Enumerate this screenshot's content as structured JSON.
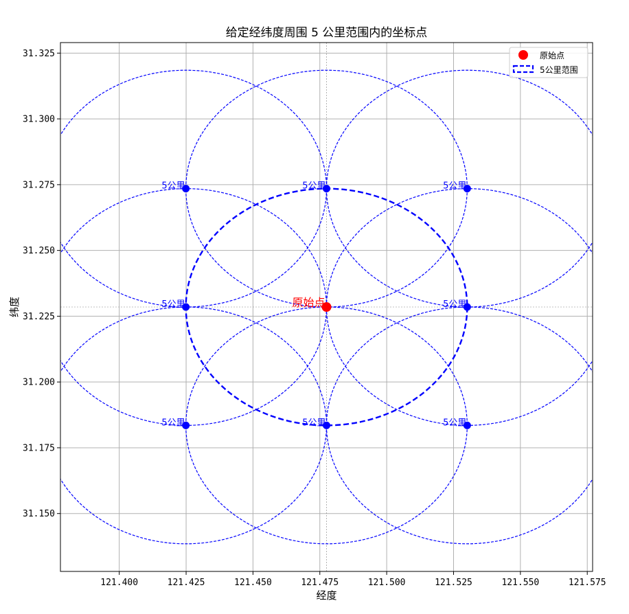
{
  "chart_data": {
    "type": "scatter",
    "title": "给定经纬度周围 5 公里范围内的坐标点",
    "xlabel": "经度",
    "ylabel": "纬度",
    "xlim": [
      121.378,
      121.577
    ],
    "ylim": [
      31.128,
      31.329
    ],
    "grid": true,
    "legend_placement": "top-right",
    "xticks": [
      121.4,
      121.425,
      121.45,
      121.475,
      121.5,
      121.525,
      121.55,
      121.575
    ],
    "yticks": [
      31.15,
      31.175,
      31.2,
      31.225,
      31.25,
      31.275,
      31.3,
      31.325
    ],
    "xtick_labels": [
      "121.400",
      "121.425",
      "121.450",
      "121.475",
      "121.500",
      "121.525",
      "121.550",
      "121.575"
    ],
    "ytick_labels": [
      "31.150",
      "31.175",
      "31.200",
      "31.225",
      "31.250",
      "31.275",
      "31.300",
      "31.325"
    ],
    "radius_deg_lat": 0.045,
    "radius_deg_lon": 0.0526,
    "origin": {
      "x": 121.4775,
      "y": 31.2285,
      "label": "原始点",
      "color": "#ff0000"
    },
    "points": [
      {
        "x": 121.4249,
        "y": 31.2735,
        "label": "5公里"
      },
      {
        "x": 121.4775,
        "y": 31.2735,
        "label": "5公里"
      },
      {
        "x": 121.5301,
        "y": 31.2735,
        "label": "5公里"
      },
      {
        "x": 121.4249,
        "y": 31.2285,
        "label": "5公里"
      },
      {
        "x": 121.5301,
        "y": 31.2285,
        "label": "5公里"
      },
      {
        "x": 121.4249,
        "y": 31.1835,
        "label": "5公里"
      },
      {
        "x": 121.4775,
        "y": 31.1835,
        "label": "5公里"
      },
      {
        "x": 121.5301,
        "y": 31.1835,
        "label": "5公里"
      }
    ],
    "point_color": "#0000ff",
    "legend": [
      {
        "name": "原始点",
        "color": "#ff0000",
        "marker": "dot"
      },
      {
        "name": "5公里范围",
        "color": "#0000ff",
        "marker": "dashed-rect"
      }
    ]
  }
}
